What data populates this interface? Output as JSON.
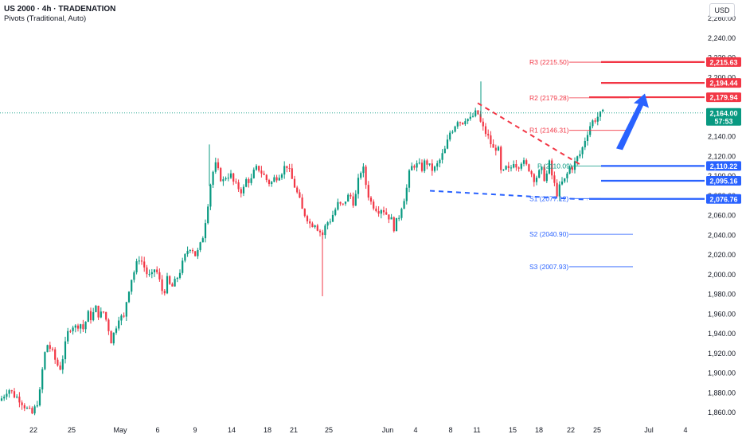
{
  "header": {
    "title": "US 2000 · 4h · TRADENATION",
    "indicator": "Pivots (Traditional, Auto)",
    "currency": "USD"
  },
  "colors": {
    "up": "#089981",
    "down": "#f23645",
    "pivot_red": "#f23645",
    "pivot_blue": "#2962ff",
    "arrow": "#2962ff",
    "last_price": "#089981"
  },
  "chart_data": {
    "type": "candlestick",
    "symbol": "US 2000",
    "interval": "4h",
    "ylim": [
      1848,
      2272
    ],
    "y_ticks": [
      1860,
      1880,
      1900,
      1920,
      1940,
      1960,
      1980,
      2000,
      2020,
      2040,
      2060,
      2080,
      2100,
      2120,
      2140,
      2160,
      2180,
      2200,
      2220,
      2240,
      2260
    ],
    "x_tick_labels": [
      "22",
      "25",
      "May",
      "6",
      "9",
      "14",
      "18",
      "21",
      "25",
      "Jun",
      "4",
      "8",
      "11",
      "15",
      "18",
      "22",
      "25",
      "Jul",
      "4"
    ],
    "close_path": [
      [
        0,
        1872
      ],
      [
        5,
        1878
      ],
      [
        10,
        1885
      ],
      [
        15,
        1880
      ],
      [
        20,
        1876
      ],
      [
        25,
        1874
      ],
      [
        30,
        1868
      ],
      [
        35,
        1862
      ],
      [
        40,
        1858
      ],
      [
        45,
        1866
      ],
      [
        50,
        1880
      ],
      [
        55,
        1916
      ],
      [
        60,
        1930
      ],
      [
        65,
        1922
      ],
      [
        70,
        1912
      ],
      [
        75,
        1904
      ],
      [
        80,
        1920
      ],
      [
        85,
        1940
      ],
      [
        90,
        1950
      ],
      [
        95,
        1946
      ],
      [
        100,
        1952
      ],
      [
        105,
        1944
      ],
      [
        110,
        1960
      ],
      [
        115,
        1956
      ],
      [
        120,
        1966
      ],
      [
        125,
        1958
      ],
      [
        130,
        1962
      ],
      [
        135,
        1950
      ],
      [
        140,
        1932
      ],
      [
        145,
        1946
      ],
      [
        150,
        1960
      ],
      [
        155,
        1952
      ],
      [
        160,
        1980
      ],
      [
        165,
        1996
      ],
      [
        170,
        2006
      ],
      [
        175,
        2018
      ],
      [
        180,
        2010
      ],
      [
        185,
        2000
      ],
      [
        190,
        1996
      ],
      [
        195,
        2008
      ],
      [
        200,
        1994
      ],
      [
        205,
        1980
      ],
      [
        210,
        1994
      ],
      [
        215,
        1986
      ],
      [
        220,
        1992
      ],
      [
        225,
        2002
      ],
      [
        230,
        2012
      ],
      [
        235,
        2024
      ],
      [
        240,
        2030
      ],
      [
        245,
        2020
      ],
      [
        250,
        2024
      ],
      [
        255,
        2040
      ],
      [
        260,
        2066
      ],
      [
        265,
        2096
      ],
      [
        270,
        2112
      ],
      [
        275,
        2102
      ],
      [
        280,
        2094
      ],
      [
        285,
        2102
      ],
      [
        290,
        2100
      ],
      [
        295,
        2090
      ],
      [
        300,
        2088
      ],
      [
        305,
        2084
      ],
      [
        310,
        2098
      ],
      [
        315,
        2094
      ],
      [
        320,
        2106
      ],
      [
        325,
        2108
      ],
      [
        330,
        2102
      ],
      [
        335,
        2096
      ],
      [
        340,
        2092
      ],
      [
        345,
        2098
      ],
      [
        350,
        2102
      ],
      [
        355,
        2106
      ],
      [
        360,
        2112
      ],
      [
        365,
        2100
      ],
      [
        370,
        2090
      ],
      [
        375,
        2078
      ],
      [
        380,
        2064
      ],
      [
        385,
        2060
      ],
      [
        390,
        2050
      ],
      [
        395,
        2054
      ],
      [
        400,
        2046
      ],
      [
        405,
        2040
      ],
      [
        410,
        2052
      ],
      [
        415,
        2056
      ],
      [
        420,
        2064
      ],
      [
        425,
        2072
      ],
      [
        430,
        2068
      ],
      [
        435,
        2078
      ],
      [
        440,
        2080
      ],
      [
        445,
        2072
      ],
      [
        450,
        2094
      ],
      [
        455,
        2112
      ],
      [
        460,
        2090
      ],
      [
        465,
        2074
      ],
      [
        470,
        2070
      ],
      [
        475,
        2066
      ],
      [
        480,
        2068
      ],
      [
        485,
        2062
      ],
      [
        490,
        2058
      ],
      [
        495,
        2048
      ],
      [
        500,
        2056
      ],
      [
        505,
        2072
      ],
      [
        510,
        2084
      ],
      [
        515,
        2106
      ],
      [
        520,
        2112
      ],
      [
        525,
        2110
      ],
      [
        530,
        2108
      ],
      [
        535,
        2116
      ],
      [
        540,
        2108
      ],
      [
        545,
        2106
      ],
      [
        550,
        2112
      ],
      [
        555,
        2120
      ],
      [
        560,
        2128
      ],
      [
        565,
        2144
      ],
      [
        570,
        2150
      ],
      [
        575,
        2158
      ],
      [
        580,
        2154
      ],
      [
        585,
        2160
      ],
      [
        590,
        2156
      ],
      [
        595,
        2162
      ],
      [
        600,
        2164
      ],
      [
        605,
        2150
      ],
      [
        610,
        2144
      ],
      [
        615,
        2136
      ],
      [
        620,
        2126
      ],
      [
        625,
        2132
      ],
      [
        630,
        2098
      ],
      [
        635,
        2108
      ],
      [
        640,
        2104
      ],
      [
        645,
        2116
      ],
      [
        650,
        2110
      ],
      [
        655,
        2116
      ],
      [
        660,
        2110
      ],
      [
        665,
        2108
      ],
      [
        670,
        2098
      ],
      [
        675,
        2100
      ],
      [
        680,
        2106
      ],
      [
        685,
        2096
      ],
      [
        690,
        2112
      ],
      [
        695,
        2094
      ],
      [
        700,
        2082
      ],
      [
        705,
        2092
      ],
      [
        710,
        2096
      ],
      [
        715,
        2108
      ],
      [
        720,
        2110
      ],
      [
        725,
        2118
      ],
      [
        730,
        2124
      ],
      [
        735,
        2138
      ],
      [
        740,
        2150
      ],
      [
        745,
        2156
      ],
      [
        750,
        2160
      ],
      [
        755,
        2162
      ],
      [
        760,
        2164
      ]
    ],
    "pivot_levels": [
      {
        "name": "R3",
        "value": 2215.5,
        "label": "R3 (2215.50)"
      },
      {
        "name": "R2",
        "value": 2179.28,
        "label": "R2 (2179.28)"
      },
      {
        "name": "R1",
        "value": 2146.31,
        "label": "R1 (2146.31)"
      },
      {
        "name": "P",
        "value": 2110.09,
        "label": "P (2110.09)"
      },
      {
        "name": "S1",
        "value": 2077.12,
        "label": "S1 (2077.12)"
      },
      {
        "name": "S2",
        "value": 2040.9,
        "label": "S2 (2040.90)"
      },
      {
        "name": "S3",
        "value": 2007.93,
        "label": "S3 (2007.93)"
      }
    ],
    "drawn_levels": [
      {
        "value": 2215.63,
        "label": "2,215.63",
        "color": "red"
      },
      {
        "value": 2194.44,
        "label": "2,194.44",
        "color": "red"
      },
      {
        "value": 2179.94,
        "label": "2,179.94",
        "color": "red"
      },
      {
        "value": 2110.22,
        "label": "2,110.22",
        "color": "blue"
      },
      {
        "value": 2095.16,
        "label": "2,095.16",
        "color": "blue"
      },
      {
        "value": 2076.76,
        "label": "2,076.76",
        "color": "blue"
      }
    ],
    "last_price": {
      "value": 2164.0,
      "label": "2,164.00",
      "countdown": "57:53"
    },
    "trendlines": [
      {
        "style": "dashed",
        "color": "red",
        "from_price": 2174,
        "to_price": 2112
      },
      {
        "style": "dashed",
        "color": "blue",
        "from_price": 2085,
        "to_price": 2076
      }
    ],
    "arrow": {
      "direction": "up",
      "from_price": 2128,
      "to_price": 2182
    }
  }
}
